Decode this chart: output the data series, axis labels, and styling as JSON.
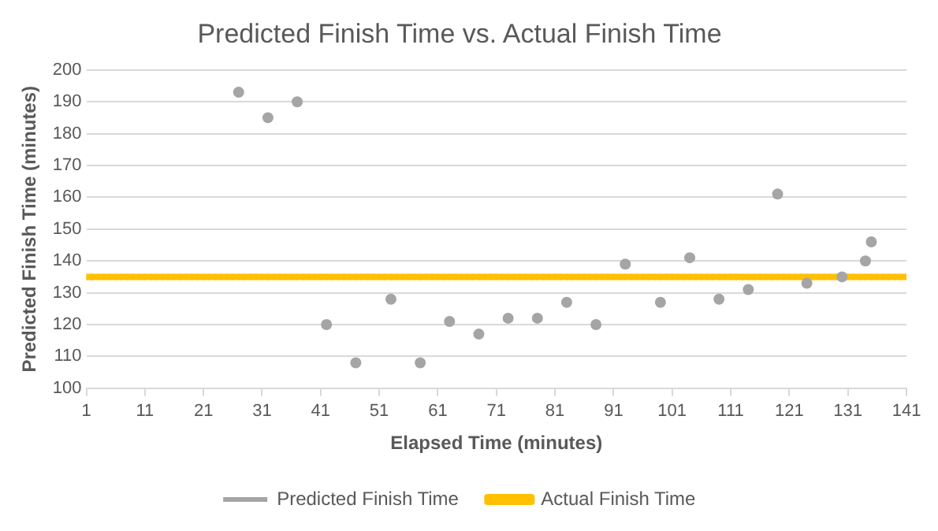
{
  "chart_data": {
    "type": "line",
    "title": "Predicted Finish Time vs. Actual Finish Time",
    "xlabel": "Elapsed Time (minutes)",
    "ylabel": "Predicted Finish Time (minutes)",
    "xlim": [
      1,
      141
    ],
    "xticks": [
      1,
      11,
      21,
      31,
      41,
      51,
      61,
      71,
      81,
      91,
      101,
      111,
      121,
      131,
      141
    ],
    "ylim": [
      100,
      200
    ],
    "yticks": [
      100,
      110,
      120,
      130,
      140,
      150,
      160,
      170,
      180,
      190,
      200
    ],
    "grid": "y",
    "legend": "bottom",
    "marker": "circle",
    "series": [
      {
        "name": "Predicted Finish Time",
        "type": "scatter",
        "color": "#a5a5a5",
        "x": [
          27,
          32,
          37,
          42,
          47,
          53,
          58,
          63,
          68,
          73,
          78,
          83,
          88,
          93,
          99,
          104,
          109,
          114,
          119,
          124,
          130,
          134,
          135
        ],
        "values": [
          193,
          185,
          190,
          120,
          108,
          128,
          108,
          121,
          117,
          122,
          122,
          127,
          120,
          139,
          127,
          141,
          128,
          131,
          161,
          133,
          135,
          140,
          146
        ]
      },
      {
        "name": "Actual Finish Time",
        "type": "line",
        "color": "#ffc000",
        "x": [
          1,
          2,
          3,
          4,
          5,
          6,
          7,
          8,
          9,
          10,
          11,
          12,
          13,
          14,
          15,
          16,
          17,
          18,
          19,
          20,
          21,
          22,
          23,
          24,
          25,
          26,
          27,
          28,
          29,
          30,
          31,
          32,
          33,
          34,
          35,
          36,
          37,
          38,
          39,
          40,
          41,
          42,
          43,
          44,
          45,
          46,
          47,
          48,
          49,
          50,
          51,
          52,
          53,
          54,
          55,
          56,
          57,
          58,
          59,
          60,
          61,
          62,
          63,
          64,
          65,
          66,
          67,
          68,
          69,
          70,
          71,
          72,
          73,
          74,
          75,
          76,
          77,
          78,
          79,
          80,
          81,
          82,
          83,
          84,
          85,
          86,
          87,
          88,
          89,
          90,
          91,
          92,
          93,
          94,
          95,
          96,
          97,
          98,
          99,
          100,
          101,
          102,
          103,
          104,
          105,
          106,
          107,
          108,
          109,
          110,
          111,
          112,
          113,
          114,
          115,
          116,
          117,
          118,
          119,
          120,
          121,
          122,
          123,
          124,
          125,
          126,
          127,
          128,
          129,
          130,
          131,
          132,
          133,
          134,
          135,
          136,
          137,
          138,
          139,
          140,
          141
        ],
        "values": [
          135,
          135,
          135,
          135,
          135,
          135,
          135,
          135,
          135,
          135,
          135,
          135,
          135,
          135,
          135,
          135,
          135,
          135,
          135,
          135,
          135,
          135,
          135,
          135,
          135,
          135,
          135,
          135,
          135,
          135,
          135,
          135,
          135,
          135,
          135,
          135,
          135,
          135,
          135,
          135,
          135,
          135,
          135,
          135,
          135,
          135,
          135,
          135,
          135,
          135,
          135,
          135,
          135,
          135,
          135,
          135,
          135,
          135,
          135,
          135,
          135,
          135,
          135,
          135,
          135,
          135,
          135,
          135,
          135,
          135,
          135,
          135,
          135,
          135,
          135,
          135,
          135,
          135,
          135,
          135,
          135,
          135,
          135,
          135,
          135,
          135,
          135,
          135,
          135,
          135,
          135,
          135,
          135,
          135,
          135,
          135,
          135,
          135,
          135,
          135,
          135,
          135,
          135,
          135,
          135,
          135,
          135,
          135,
          135,
          135,
          135,
          135,
          135,
          135,
          135,
          135,
          135,
          135,
          135,
          135,
          135,
          135,
          135,
          135,
          135,
          135,
          135,
          135,
          135,
          135,
          135,
          135,
          135,
          135,
          135,
          135,
          135,
          135,
          135,
          135,
          135
        ]
      }
    ]
  }
}
